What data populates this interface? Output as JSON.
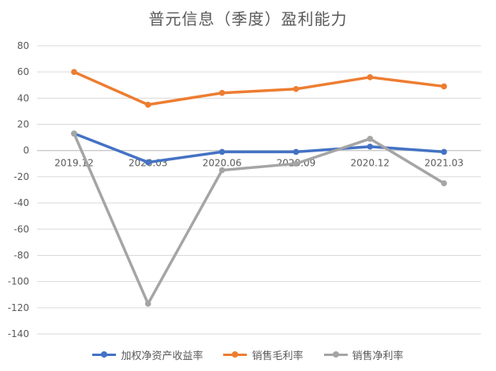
{
  "chart_data": {
    "type": "line",
    "title": "普元信息（季度）盈利能力",
    "categories": [
      "2019.12",
      "2020.03",
      "2020.06",
      "2020.09",
      "2020.12",
      "2021.03"
    ],
    "ylim": [
      -140,
      80
    ],
    "yticks": [
      80,
      60,
      40,
      20,
      0,
      -20,
      -40,
      -60,
      -80,
      -100,
      -120,
      -140
    ],
    "grid": true,
    "legend_position": "bottom",
    "series": [
      {
        "name": "加权净资产收益率",
        "color": "#4472C4",
        "values": [
          13,
          -9,
          -1,
          -1,
          3,
          -1
        ]
      },
      {
        "name": "销售毛利率",
        "color": "#ED7D31",
        "values": [
          60,
          35,
          44,
          47,
          56,
          49
        ]
      },
      {
        "name": "销售净利率",
        "color": "#A5A5A5",
        "values": [
          13,
          -117,
          -15,
          -10,
          9,
          -25
        ]
      }
    ]
  }
}
